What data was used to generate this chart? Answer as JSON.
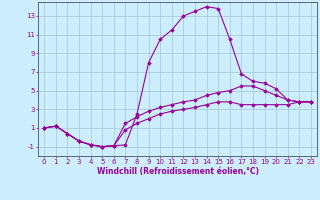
{
  "xlabel": "Windchill (Refroidissement éolien,°C)",
  "bg_color": "#cceeff",
  "line_color": "#990099",
  "grid_color": "#aaccdd",
  "xlim": [
    -0.5,
    23.5
  ],
  "ylim": [
    -2.0,
    14.5
  ],
  "yticks": [
    -1,
    1,
    3,
    5,
    7,
    9,
    11,
    13
  ],
  "xticks": [
    0,
    1,
    2,
    3,
    4,
    5,
    6,
    7,
    8,
    9,
    10,
    11,
    12,
    13,
    14,
    15,
    16,
    17,
    18,
    19,
    20,
    21,
    22,
    23
  ],
  "series": [
    [
      1.0,
      1.2,
      0.4,
      -0.4,
      -0.8,
      -1.0,
      -0.9,
      -0.8,
      2.5,
      8.0,
      10.5,
      11.5,
      13.0,
      13.5,
      14.0,
      13.8,
      10.5,
      6.8,
      6.0,
      5.8,
      5.2,
      4.0,
      3.8,
      3.8
    ],
    [
      1.0,
      1.2,
      0.4,
      -0.4,
      -0.8,
      -1.0,
      -0.9,
      1.5,
      2.2,
      2.8,
      3.2,
      3.5,
      3.8,
      4.0,
      4.5,
      4.8,
      5.0,
      5.5,
      5.5,
      5.0,
      4.5,
      4.0,
      3.8,
      3.8
    ],
    [
      1.0,
      1.2,
      0.4,
      -0.4,
      -0.8,
      -1.0,
      -0.9,
      0.8,
      1.5,
      2.0,
      2.5,
      2.8,
      3.0,
      3.2,
      3.5,
      3.8,
      3.8,
      3.5,
      3.5,
      3.5,
      3.5,
      3.5,
      3.8,
      3.8
    ]
  ],
  "xlabel_fontsize": 5.5,
  "tick_fontsize": 5.0
}
